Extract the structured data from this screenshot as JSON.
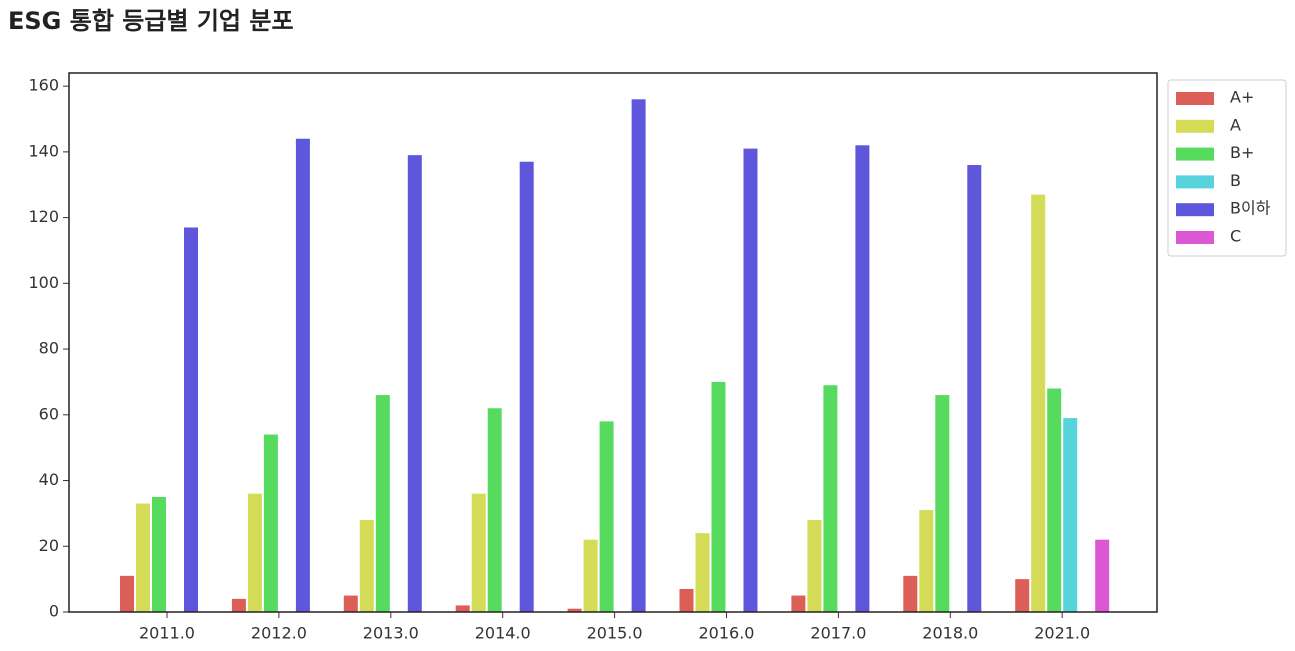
{
  "chart_data": {
    "type": "bar",
    "title": "ESG 통합 등급별 기업 분포",
    "categories": [
      "2011.0",
      "2012.0",
      "2013.0",
      "2014.0",
      "2015.0",
      "2016.0",
      "2017.0",
      "2018.0",
      "2021.0"
    ],
    "series": [
      {
        "name": "A+",
        "color": "#db5f57",
        "values": [
          11,
          4,
          5,
          2,
          1,
          7,
          5,
          11,
          10
        ]
      },
      {
        "name": "A",
        "color": "#d3db57",
        "values": [
          33,
          36,
          28,
          36,
          22,
          24,
          28,
          31,
          127
        ]
      },
      {
        "name": "B+",
        "color": "#57db5f",
        "values": [
          35,
          54,
          66,
          62,
          58,
          70,
          69,
          66,
          68
        ]
      },
      {
        "name": "B",
        "color": "#57d3db",
        "values": [
          null,
          null,
          null,
          null,
          null,
          null,
          null,
          null,
          59
        ]
      },
      {
        "name": "B이하",
        "color": "#5f57db",
        "values": [
          117,
          144,
          139,
          137,
          156,
          141,
          142,
          136,
          null
        ]
      },
      {
        "name": "C",
        "color": "#db57d3",
        "values": [
          null,
          null,
          null,
          null,
          null,
          null,
          null,
          null,
          22
        ]
      }
    ],
    "ylim": [
      0,
      164
    ],
    "yticks": [
      0,
      20,
      40,
      60,
      80,
      100,
      120,
      140,
      160
    ],
    "legend": "outside-upper-right"
  }
}
